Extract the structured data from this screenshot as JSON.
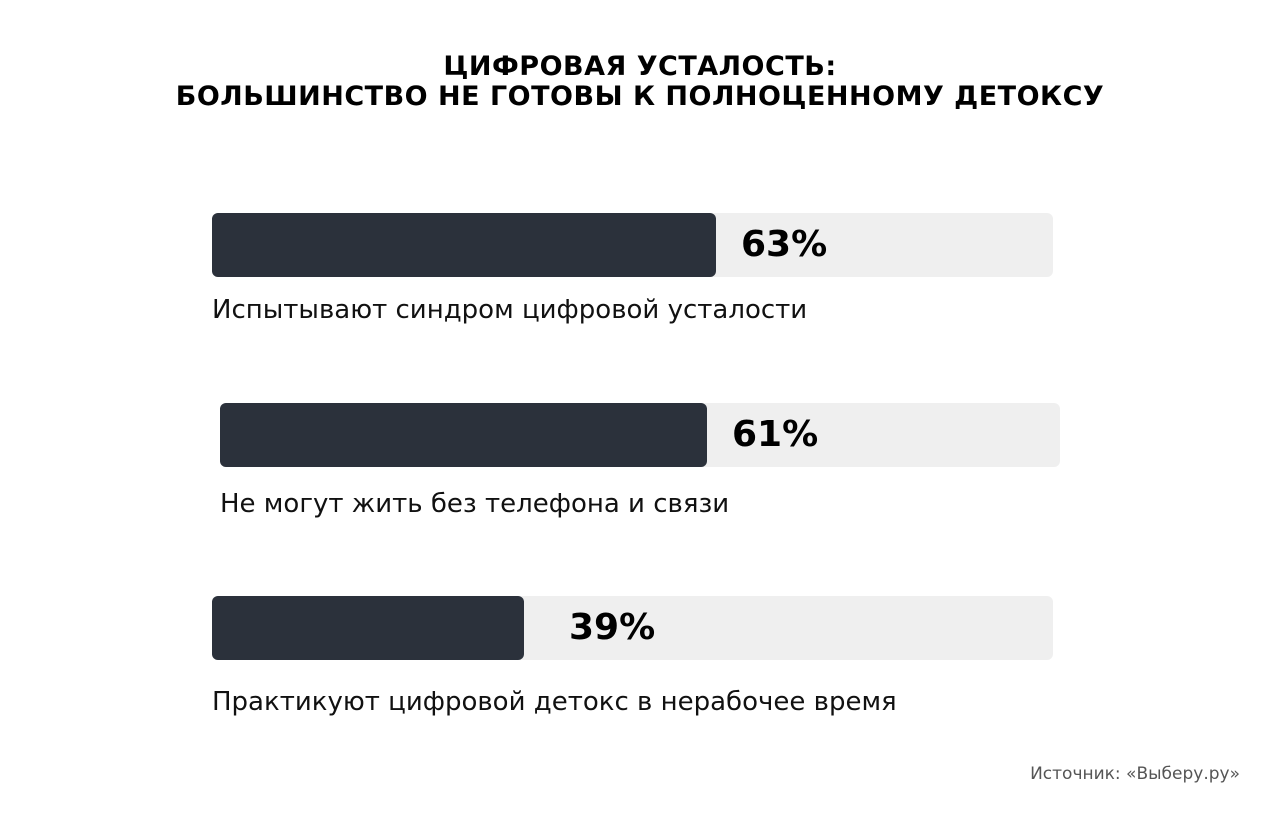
{
  "chart_data": {
    "type": "bar",
    "title_lines": [
      "ЦИФРОВАЯ УСТАЛОСТЬ:",
      "БОЛЬШИНСТВО НЕ ГОТОВЫ К ПОЛНОЦЕННОМУ ДЕТОКСУ"
    ],
    "orientation": "horizontal",
    "ylim": [
      0,
      100
    ],
    "bars": [
      {
        "label": "Испытывают синдром цифровой усталости",
        "value": 63,
        "value_label": "63%"
      },
      {
        "label": "Не могут жить без телефона и связи",
        "value": 61,
        "value_label": "61%"
      },
      {
        "label": "Практикуют цифровой детокс в нерабочее время",
        "value": 39,
        "value_label": "39%"
      }
    ],
    "colors": {
      "fill": "#2b313b",
      "track": "#efefef"
    }
  },
  "source": "Источник: «Выберу.ру»"
}
